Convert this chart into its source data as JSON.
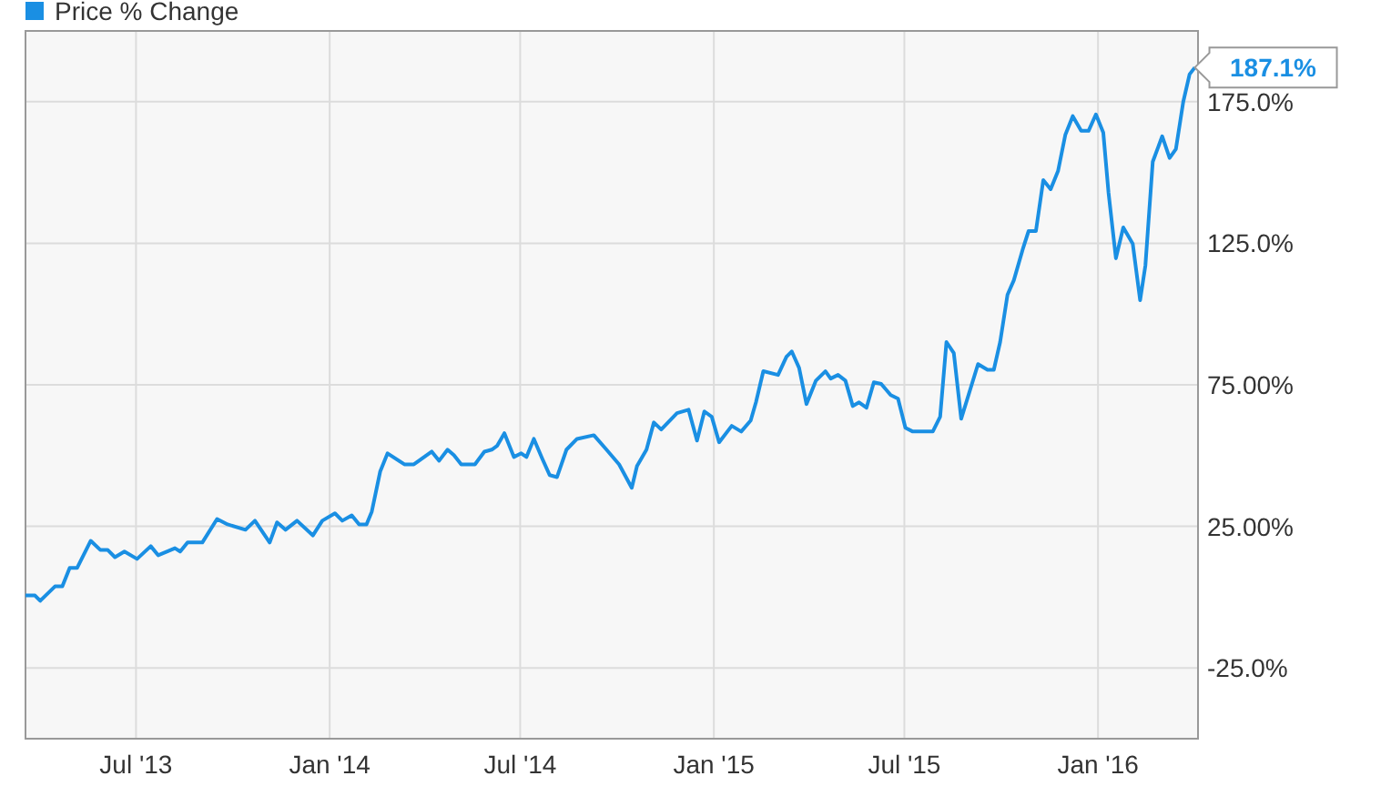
{
  "chart_data": {
    "type": "line",
    "legend": "top left",
    "grid": true,
    "marker": "none",
    "line_style": "solid",
    "xlim": [
      "2013-03-18",
      "2016-04-05"
    ],
    "xticks": [
      {
        "value": "2013-07-01",
        "label": "Jul '13"
      },
      {
        "value": "2014-01-01",
        "label": "Jan '14"
      },
      {
        "value": "2014-07-01",
        "label": "Jul '14"
      },
      {
        "value": "2015-01-01",
        "label": "Jan '15"
      },
      {
        "value": "2015-07-01",
        "label": "Jul '15"
      },
      {
        "value": "2016-01-01",
        "label": "Jan '16"
      }
    ],
    "ylim": [
      -50,
      200
    ],
    "yticks": [
      {
        "value": -25,
        "label": "-25.0%"
      },
      {
        "value": 25,
        "label": "25.00%"
      },
      {
        "value": 75,
        "label": "75.00%"
      },
      {
        "value": 125,
        "label": "125.0%"
      },
      {
        "value": 175,
        "label": "175.0%"
      }
    ],
    "x": [
      "2013-03-18",
      "2013-03-27",
      "2013-04-01",
      "2013-04-15",
      "2013-04-22",
      "2013-04-29",
      "2013-05-06",
      "2013-05-19",
      "2013-05-28",
      "2013-06-04",
      "2013-06-11",
      "2013-06-20",
      "2013-07-02",
      "2013-07-15",
      "2013-07-22",
      "2013-08-07",
      "2013-08-12",
      "2013-08-19",
      "2013-09-02",
      "2013-09-16",
      "2013-09-26",
      "2013-10-13",
      "2013-10-22",
      "2013-11-05",
      "2013-11-12",
      "2013-11-20",
      "2013-12-01",
      "2013-12-16",
      "2013-12-25",
      "2014-01-06",
      "2014-01-13",
      "2014-01-22",
      "2014-01-29",
      "2014-02-05",
      "2014-02-10",
      "2014-02-18",
      "2014-02-25",
      "2014-03-13",
      "2014-03-22",
      "2014-04-08",
      "2014-04-15",
      "2014-04-23",
      "2014-04-29",
      "2014-05-06",
      "2014-05-19",
      "2014-05-28",
      "2014-06-04",
      "2014-06-09",
      "2014-06-16",
      "2014-06-25",
      "2014-07-02",
      "2014-07-07",
      "2014-07-14",
      "2014-07-22",
      "2014-07-29",
      "2014-08-05",
      "2014-08-14",
      "2014-08-24",
      "2014-09-09",
      "2014-09-21",
      "2014-10-03",
      "2014-10-15",
      "2014-10-20",
      "2014-10-29",
      "2014-11-05",
      "2014-11-12",
      "2014-11-27",
      "2014-12-08",
      "2014-12-16",
      "2014-12-23",
      "2014-12-30",
      "2015-01-06",
      "2015-01-18",
      "2015-01-27",
      "2015-02-05",
      "2015-02-10",
      "2015-02-17",
      "2015-03-03",
      "2015-03-11",
      "2015-03-16",
      "2015-03-23",
      "2015-03-30",
      "2015-04-08",
      "2015-04-17",
      "2015-04-22",
      "2015-04-29",
      "2015-05-06",
      "2015-05-13",
      "2015-05-19",
      "2015-05-26",
      "2015-06-02",
      "2015-06-09",
      "2015-06-18",
      "2015-06-25",
      "2015-07-02",
      "2015-07-09",
      "2015-07-16",
      "2015-07-28",
      "2015-08-04",
      "2015-08-10",
      "2015-08-17",
      "2015-08-24",
      "2015-09-09",
      "2015-09-18",
      "2015-09-24",
      "2015-09-30",
      "2015-10-07",
      "2015-10-13",
      "2015-10-22",
      "2015-10-27",
      "2015-11-03",
      "2015-11-10",
      "2015-11-17",
      "2015-11-24",
      "2015-12-01",
      "2015-12-08",
      "2015-12-16",
      "2015-12-23",
      "2015-12-30",
      "2016-01-06",
      "2016-01-11",
      "2016-01-18",
      "2016-01-25",
      "2016-02-03",
      "2016-02-10",
      "2016-02-15",
      "2016-02-22",
      "2016-03-02",
      "2016-03-09",
      "2016-03-15",
      "2016-03-22",
      "2016-03-28",
      "2016-04-02"
    ],
    "series": [
      {
        "name": "Price % Change",
        "color": "#1a8fe3",
        "values": [
          0.6,
          0.6,
          -1.3,
          3.8,
          3.8,
          10.3,
          10.3,
          19.9,
          16.7,
          16.7,
          14.1,
          16.1,
          13.5,
          18.0,
          14.8,
          17.3,
          16.1,
          19.3,
          19.3,
          27.6,
          25.7,
          23.8,
          27.0,
          19.3,
          26.4,
          23.8,
          27.0,
          21.8,
          27.0,
          29.6,
          27.0,
          28.9,
          25.7,
          25.7,
          30.2,
          44.4,
          50.8,
          46.9,
          46.9,
          51.4,
          48.2,
          52.1,
          50.2,
          46.9,
          46.9,
          51.4,
          52.1,
          53.4,
          57.9,
          49.5,
          50.8,
          49.5,
          55.9,
          48.9,
          43.1,
          42.4,
          52.1,
          55.9,
          57.2,
          52.1,
          46.9,
          38.6,
          46.3,
          52.1,
          61.7,
          59.2,
          65.0,
          66.2,
          55.3,
          65.6,
          63.7,
          54.7,
          60.5,
          58.5,
          62.4,
          68.8,
          79.8,
          78.5,
          84.9,
          86.8,
          81.0,
          68.2,
          76.5,
          79.8,
          77.2,
          78.5,
          76.5,
          67.5,
          68.8,
          66.9,
          75.9,
          75.3,
          71.4,
          70.1,
          59.8,
          58.5,
          58.5,
          58.5,
          63.7,
          90.1,
          86.2,
          63.0,
          82.3,
          80.3,
          80.3,
          90.1,
          106.8,
          111.9,
          123.5,
          129.3,
          129.3,
          147.3,
          144.1,
          150.5,
          163.4,
          169.9,
          164.7,
          164.7,
          170.5,
          164.1,
          142.8,
          119.7,
          130.6,
          124.8,
          104.9,
          117.1,
          153.8,
          162.8,
          155.1,
          158.3,
          175.0,
          184.7,
          187.1
        ]
      }
    ],
    "annotations": [
      {
        "text": "187.1%",
        "x": "2016-04-02",
        "y": 187.1
      }
    ]
  }
}
